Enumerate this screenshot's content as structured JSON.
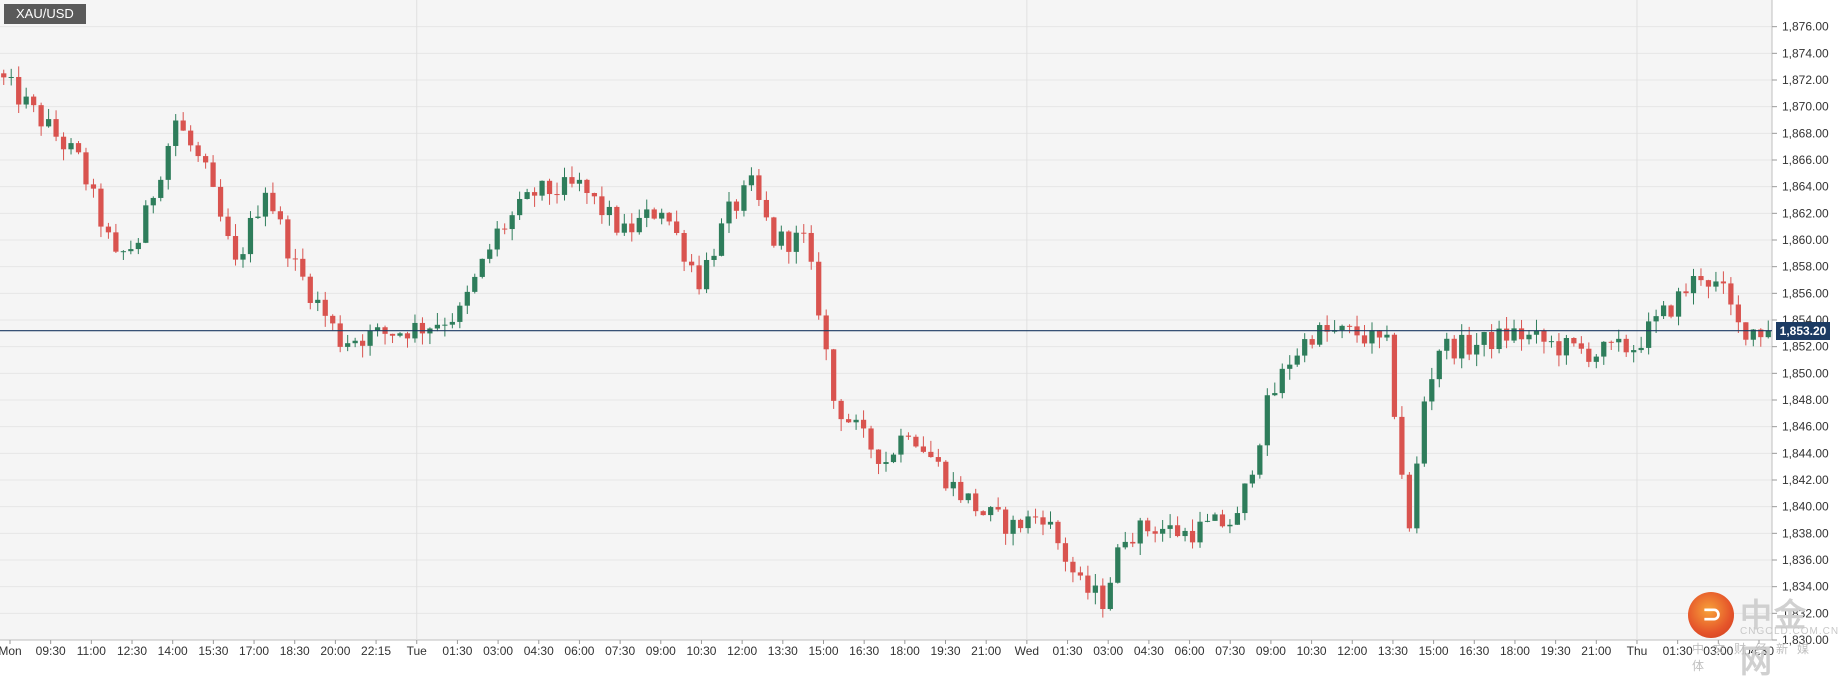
{
  "symbol": "XAU/USD",
  "current_price_label": "1,853.20",
  "watermark": {
    "name": "中金网",
    "url": "CNGOLD.COM.CN",
    "tagline": "中文财经新媒体",
    "logo_glyph": "⊃"
  },
  "colors": {
    "up": "#2e7d5b",
    "down": "#d9534f",
    "price_line": "#1c3b63",
    "grid": "#e6e6e6",
    "plot_bg": "#f5f5f5",
    "axis_text": "#333333"
  },
  "chart_data": {
    "type": "candlestick",
    "title": "",
    "xlabel": "",
    "ylabel": "",
    "ylim": [
      1830,
      1878
    ],
    "y_ticks": [
      "1,876.00",
      "1,874.00",
      "1,872.00",
      "1,870.00",
      "1,868.00",
      "1,866.00",
      "1,864.00",
      "1,862.00",
      "1,860.00",
      "1,858.00",
      "1,856.00",
      "1,854.00",
      "1,852.00",
      "1,850.00",
      "1,848.00",
      "1,846.00",
      "1,844.00",
      "1,842.00",
      "1,840.00",
      "1,838.00",
      "1,836.00",
      "1,834.00",
      "1,832.00",
      "1,830.00"
    ],
    "x_ticks": [
      "Mon",
      "09:30",
      "11:00",
      "12:30",
      "14:00",
      "15:30",
      "17:00",
      "18:30",
      "20:00",
      "22:15",
      "Tue",
      "01:30",
      "03:00",
      "04:30",
      "06:00",
      "07:30",
      "09:00",
      "10:30",
      "12:00",
      "13:30",
      "15:00",
      "16:30",
      "18:00",
      "19:30",
      "21:00",
      "Wed",
      "01:30",
      "03:00",
      "04:30",
      "06:00",
      "07:30",
      "09:00",
      "10:30",
      "12:00",
      "13:30",
      "15:00",
      "16:30",
      "18:00",
      "19:30",
      "21:00",
      "Thu",
      "01:30",
      "03:00",
      "04:30"
    ],
    "day_separators": [
      "Tue",
      "Wed",
      "Thu"
    ],
    "current_price": 1853.2,
    "grid": true,
    "anchors": [
      [
        0,
        1872.5
      ],
      [
        6,
        1869.0
      ],
      [
        11,
        1866.0
      ],
      [
        16,
        1858.5
      ],
      [
        19,
        1860.0
      ],
      [
        24,
        1869.0
      ],
      [
        28,
        1865.0
      ],
      [
        32,
        1858.0
      ],
      [
        36,
        1864.0
      ],
      [
        40,
        1858.0
      ],
      [
        46,
        1852.5
      ],
      [
        52,
        1853.0
      ],
      [
        57,
        1853.5
      ],
      [
        62,
        1854.5
      ],
      [
        67,
        1860.5
      ],
      [
        72,
        1863.5
      ],
      [
        78,
        1864.0
      ],
      [
        84,
        1860.5
      ],
      [
        89,
        1862.5
      ],
      [
        94,
        1857.0
      ],
      [
        98,
        1862.0
      ],
      [
        101,
        1864.0
      ],
      [
        104,
        1860.0
      ],
      [
        108,
        1860.0
      ],
      [
        110,
        1855.0
      ],
      [
        112,
        1848.0
      ],
      [
        116,
        1845.0
      ],
      [
        119,
        1843.5
      ],
      [
        122,
        1846.0
      ],
      [
        128,
        1841.5
      ],
      [
        132,
        1839.5
      ],
      [
        136,
        1838.5
      ],
      [
        140,
        1839.5
      ],
      [
        145,
        1834.0
      ],
      [
        148,
        1833.0
      ],
      [
        151,
        1838.0
      ],
      [
        155,
        1838.5
      ],
      [
        159,
        1838.0
      ],
      [
        162,
        1838.5
      ],
      [
        166,
        1839.0
      ],
      [
        170,
        1847.5
      ],
      [
        173,
        1851.0
      ],
      [
        176,
        1853.0
      ],
      [
        182,
        1853.0
      ],
      [
        186,
        1852.0
      ],
      [
        189,
        1838.0
      ],
      [
        191,
        1848.0
      ],
      [
        193,
        1852.0
      ],
      [
        197,
        1852.0
      ],
      [
        203,
        1853.0
      ],
      [
        209,
        1852.0
      ],
      [
        214,
        1851.5
      ],
      [
        219,
        1852.0
      ],
      [
        224,
        1855.0
      ],
      [
        228,
        1857.5
      ],
      [
        231,
        1856.0
      ],
      [
        233,
        1853.5
      ],
      [
        236,
        1853.2
      ]
    ],
    "candle_count": 237
  }
}
